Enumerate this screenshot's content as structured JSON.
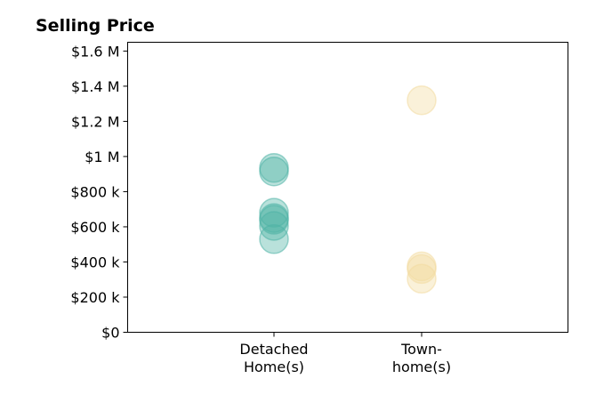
{
  "chart_data": {
    "type": "scatter",
    "title": "Selling Price",
    "xlabel": "",
    "ylabel": "",
    "categories": [
      {
        "line1": "Detached",
        "line2": "Home(s)"
      },
      {
        "line1": "Town-",
        "line2": "home(s)"
      }
    ],
    "ylim": [
      0,
      1650000
    ],
    "yticks": [
      {
        "value": 0,
        "label": "$0"
      },
      {
        "value": 200000,
        "label": "$200 k"
      },
      {
        "value": 400000,
        "label": "$400 k"
      },
      {
        "value": 600000,
        "label": "$600 k"
      },
      {
        "value": 800000,
        "label": "$800 k"
      },
      {
        "value": 1000000,
        "label": "$1 M"
      },
      {
        "value": 1200000,
        "label": "$1.2 M"
      },
      {
        "value": 1400000,
        "label": "$1.4 M"
      },
      {
        "value": 1600000,
        "label": "$1.6 M"
      }
    ],
    "grid": false,
    "series": [
      {
        "category_index": 0,
        "color": "#4fb3a6",
        "values": [
          935000,
          915000,
          680000,
          650000,
          640000,
          605000,
          530000
        ]
      },
      {
        "category_index": 1,
        "color": "#f2dba0",
        "values": [
          1320000,
          375000,
          360000,
          305000
        ]
      }
    ]
  }
}
